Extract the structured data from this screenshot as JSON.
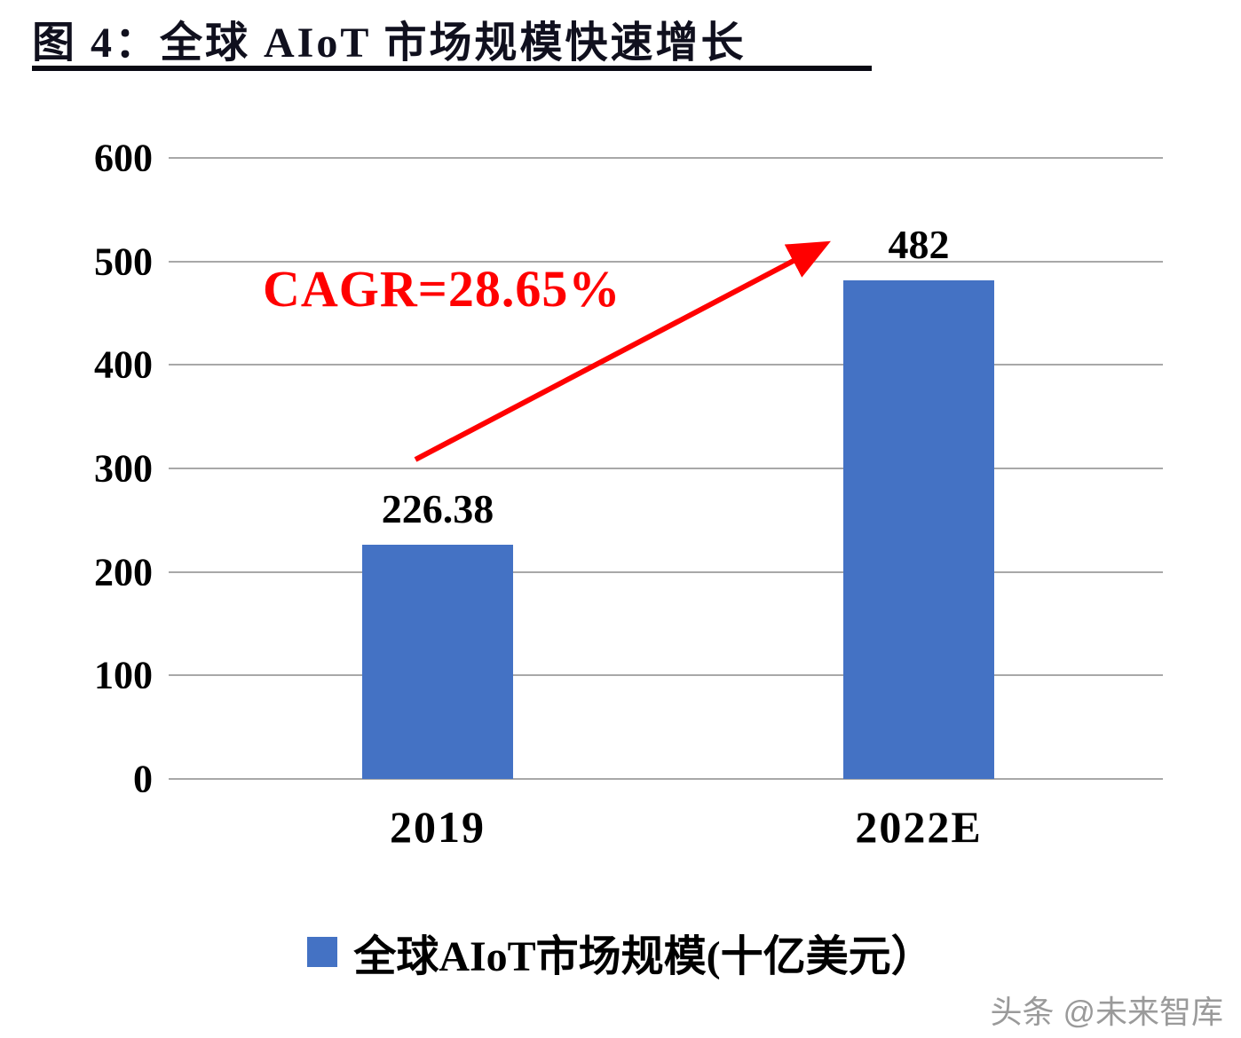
{
  "figure": {
    "title": "图 4：全球 AIoT 市场规模快速增长",
    "watermark": "头条 @未来智库"
  },
  "chart_data": {
    "type": "bar",
    "title": "图 4：全球 AIoT 市场规模快速增长",
    "categories": [
      "2019",
      "2022E"
    ],
    "values": [
      226.38,
      482
    ],
    "data_labels": [
      "226.38",
      "482"
    ],
    "series_name": "全球AIoT市场规模(十亿美元）",
    "legend_entries": [
      "全球AIoT市场规模(十亿美元）"
    ],
    "legend_position": "bottom",
    "annotation": {
      "text": "CAGR=28.65%",
      "color": "#ff0000"
    },
    "xlabel": "",
    "ylabel": "",
    "ylim": [
      0,
      600
    ],
    "yticks": [
      0,
      100,
      200,
      300,
      400,
      500,
      600
    ],
    "grid": true,
    "bar_color": "#4472c4",
    "gridline_color": "#a8a8a8"
  }
}
